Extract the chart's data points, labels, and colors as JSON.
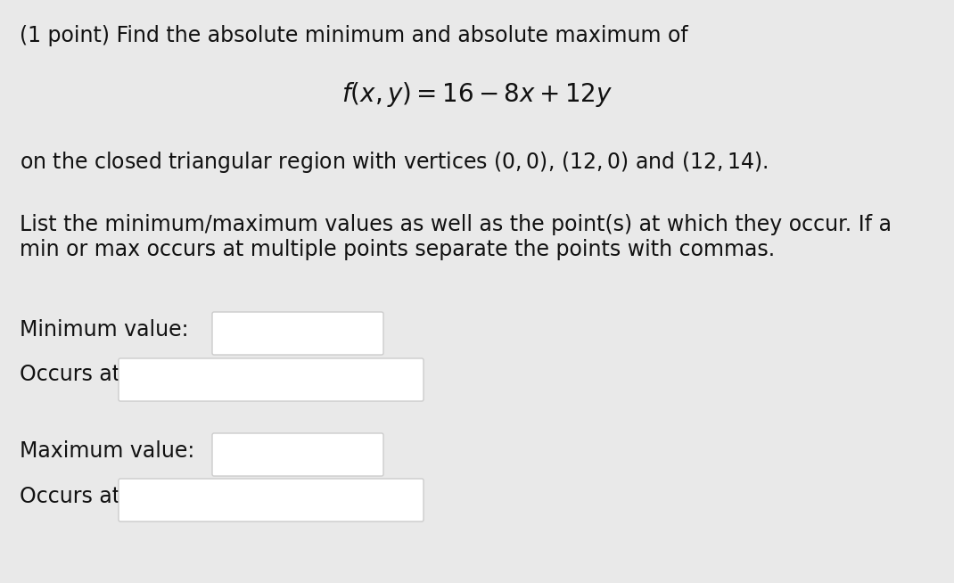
{
  "background_color": "#e9e9e9",
  "text_color": "#111111",
  "title_line": "(1 point) Find the absolute minimum and absolute maximum of",
  "formula": "$f(x, y) = 16 - 8x + 12y$",
  "region_line": "on the closed triangular region with vertices $(0, 0)$, $(12, 0)$ and $(12, 14)$.",
  "instruction_line1": "List the minimum/maximum values as well as the point(s) at which they occur. If a",
  "instruction_line2": "min or max occurs at multiple points separate the points with commas.",
  "label_min": "Minimum value:",
  "label_occurs_min": "Occurs at",
  "label_max": "Maximum value:",
  "label_occurs_max": "Occurs at",
  "box_fill": "#ffffff",
  "box_edge": "#cccccc",
  "font_size_body": 17,
  "font_size_formula": 20
}
